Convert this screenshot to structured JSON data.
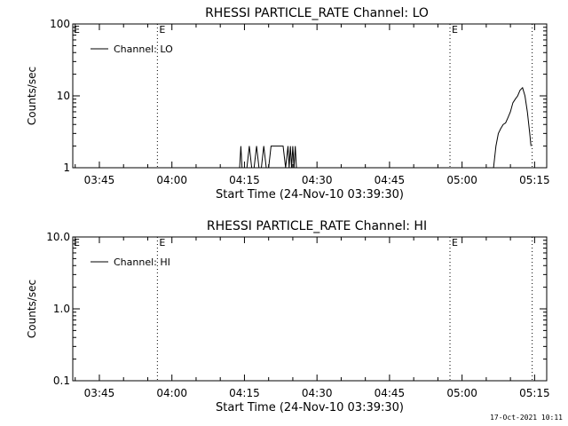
{
  "chart_data": [
    {
      "type": "line",
      "title": "RHESSI PARTICLE_RATE Channel: LO",
      "xlabel": "Start Time (24-Nov-10 03:39:30)",
      "ylabel": "Counts/sec",
      "yscale": "log",
      "ylim": [
        1,
        100
      ],
      "yticks": [
        {
          "value": 1,
          "label": "1"
        },
        {
          "value": 10,
          "label": "10"
        },
        {
          "value": 100,
          "label": "100"
        }
      ],
      "xlim": [
        "03:39:30",
        "05:17:30"
      ],
      "xticks": [
        "03:45",
        "04:00",
        "04:15",
        "04:30",
        "04:45",
        "05:00",
        "05:15"
      ],
      "grid": false,
      "legend": {
        "position": "top-left",
        "entries": [
          "Channel: LO"
        ]
      },
      "markers": [
        {
          "time": "03:57:00",
          "label": "E"
        },
        {
          "time": "04:57:30",
          "label": "E"
        },
        {
          "time": "05:14:30",
          "label": ""
        }
      ],
      "series": [
        {
          "name": "Channel: LO",
          "segments": [
            {
              "x": [
                "04:14:00",
                "04:14:15",
                "04:14:30",
                "04:15:30",
                "04:16:00",
                "04:16:30",
                "04:17:00",
                "04:17:30",
                "04:18:00",
                "04:18:30",
                "04:19:00",
                "04:19:30",
                "04:20:00",
                "04:20:30",
                "04:21:00",
                "04:22:00",
                "04:23:00",
                "04:23:30",
                "04:24:00",
                "04:24:15",
                "04:24:30",
                "04:24:45",
                "04:25:00",
                "04:25:15",
                "04:25:30",
                "04:25:45",
                "04:26:00"
              ],
              "y": [
                1,
                2,
                1,
                1,
                2,
                1,
                1,
                2,
                1,
                1,
                2,
                1,
                1,
                2,
                2,
                2,
                2,
                1,
                2,
                1,
                2,
                1,
                2,
                1,
                2,
                1,
                1
              ]
            },
            {
              "x": [
                "05:06:30",
                "05:07:00",
                "05:07:30",
                "05:08:00",
                "05:08:30",
                "05:09:00",
                "05:09:30",
                "05:10:00",
                "05:10:30",
                "05:11:00",
                "05:11:30",
                "05:12:00",
                "05:12:30",
                "05:13:00",
                "05:13:30",
                "05:14:00",
                "05:14:15"
              ],
              "y": [
                1,
                2,
                3,
                3.5,
                4,
                4.2,
                5,
                6,
                8,
                9,
                10,
                12,
                13,
                10,
                6,
                3,
                2
              ]
            }
          ]
        }
      ]
    },
    {
      "type": "line",
      "title": "RHESSI PARTICLE_RATE Channel: HI",
      "xlabel": "Start Time (24-Nov-10 03:39:30)",
      "ylabel": "Counts/sec",
      "yscale": "log",
      "ylim": [
        0.1,
        10
      ],
      "yticks": [
        {
          "value": 0.1,
          "label": "0.1"
        },
        {
          "value": 1,
          "label": "1.0"
        },
        {
          "value": 10,
          "label": "10.0"
        }
      ],
      "xlim": [
        "03:39:30",
        "05:17:30"
      ],
      "xticks": [
        "03:45",
        "04:00",
        "04:15",
        "04:30",
        "04:45",
        "05:00",
        "05:15"
      ],
      "grid": false,
      "legend": {
        "position": "top-left",
        "entries": [
          "Channel: HI"
        ]
      },
      "markers": [
        {
          "time": "03:57:00",
          "label": "E"
        },
        {
          "time": "04:57:30",
          "label": "E"
        },
        {
          "time": "05:14:30",
          "label": ""
        }
      ],
      "series": [
        {
          "name": "Channel: HI",
          "segments": []
        }
      ]
    }
  ],
  "footer": {
    "timestamp": "17-Oct-2021 10:11"
  }
}
